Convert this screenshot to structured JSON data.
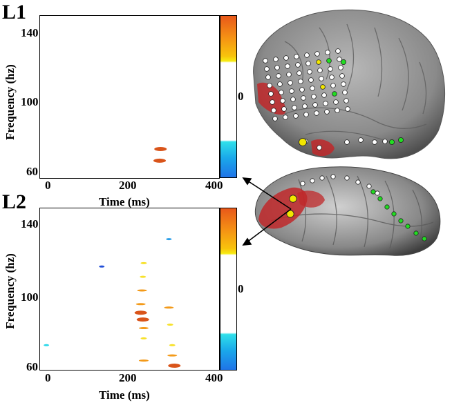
{
  "panels": [
    {
      "label": "L1",
      "yaxis": {
        "label": "Frequency (hz)",
        "ticks": [
          "140",
          "100",
          "60"
        ]
      },
      "xaxis": {
        "label": "Time (ms)",
        "ticks": [
          "0",
          "200",
          "400"
        ]
      },
      "colorbar": {
        "zero_label": "0"
      }
    },
    {
      "label": "L2",
      "yaxis": {
        "label": "Frequency (hz)",
        "ticks": [
          "140",
          "100",
          "60"
        ]
      },
      "xaxis": {
        "label": "Time (ms)",
        "ticks": [
          "0",
          "200",
          "400"
        ]
      },
      "colorbar": {
        "zero_label": "0"
      }
    }
  ],
  "colors": {
    "electrode_normal": "#ffffff",
    "electrode_active_green": "#22dd22",
    "electrode_active_yellow": "#f2e600",
    "lesion_region": "#c0282a",
    "cortex_gray": "#8e8e8e"
  },
  "chart_data": [
    {
      "type": "heatmap",
      "title": "L1",
      "xlabel": "Time (ms)",
      "ylabel": "Frequency (hz)",
      "xlim": [
        -15,
        410
      ],
      "ylim": [
        55,
        152
      ],
      "xticks": [
        0,
        200,
        400
      ],
      "yticks": [
        60,
        100,
        140
      ],
      "spots": [
        {
          "t": 272,
          "f": 72,
          "sign": "positive",
          "intensity": "high"
        },
        {
          "t": 270,
          "f": 65,
          "sign": "positive",
          "intensity": "high"
        }
      ]
    },
    {
      "type": "heatmap",
      "title": "L2",
      "xlabel": "Time (ms)",
      "ylabel": "Frequency (hz)",
      "xlim": [
        -15,
        410
      ],
      "ylim": [
        58,
        152
      ],
      "xticks": [
        0,
        200,
        400
      ],
      "yticks": [
        60,
        100,
        140
      ],
      "spots": [
        {
          "t": 232,
          "f": 120,
          "sign": "positive",
          "intensity": "low"
        },
        {
          "t": 230,
          "f": 112,
          "sign": "positive",
          "intensity": "low"
        },
        {
          "t": 228,
          "f": 104,
          "sign": "positive",
          "intensity": "medium"
        },
        {
          "t": 225,
          "f": 96,
          "sign": "positive",
          "intensity": "medium"
        },
        {
          "t": 225,
          "f": 91,
          "sign": "positive",
          "intensity": "high"
        },
        {
          "t": 230,
          "f": 87,
          "sign": "positive",
          "intensity": "high"
        },
        {
          "t": 232,
          "f": 82,
          "sign": "positive",
          "intensity": "medium"
        },
        {
          "t": 232,
          "f": 76,
          "sign": "positive",
          "intensity": "low"
        },
        {
          "t": 232,
          "f": 63,
          "sign": "positive",
          "intensity": "medium"
        },
        {
          "t": 292,
          "f": 94,
          "sign": "positive",
          "intensity": "medium"
        },
        {
          "t": 295,
          "f": 84,
          "sign": "positive",
          "intensity": "low"
        },
        {
          "t": 300,
          "f": 72,
          "sign": "positive",
          "intensity": "low"
        },
        {
          "t": 300,
          "f": 66,
          "sign": "positive",
          "intensity": "medium"
        },
        {
          "t": 305,
          "f": 60,
          "sign": "positive",
          "intensity": "high"
        },
        {
          "t": 132,
          "f": 118,
          "sign": "negative",
          "intensity": "high"
        },
        {
          "t": 292,
          "f": 134,
          "sign": "negative",
          "intensity": "medium"
        },
        {
          "t": 0,
          "f": 72,
          "sign": "negative",
          "intensity": "low"
        }
      ]
    }
  ]
}
